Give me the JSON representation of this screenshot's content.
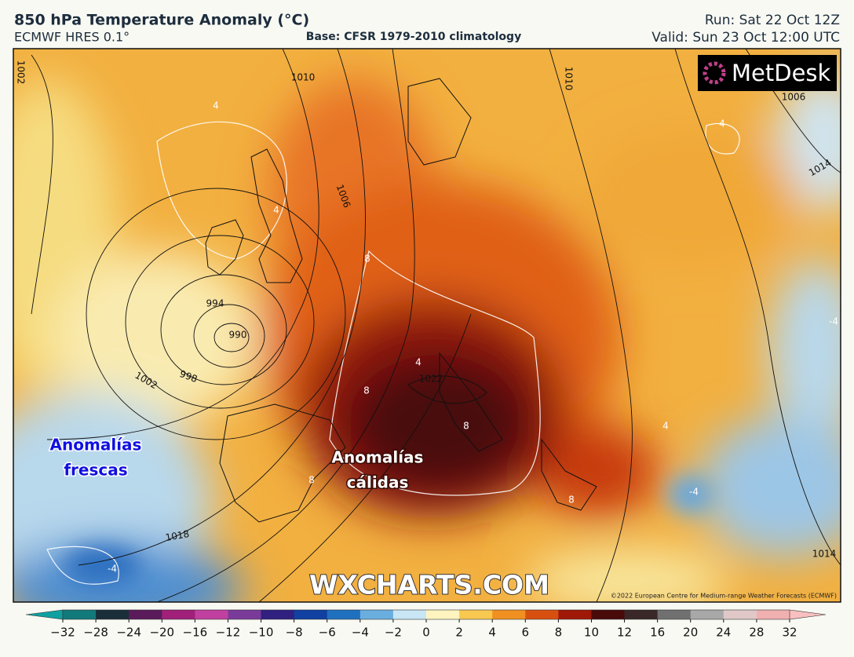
{
  "header": {
    "title": "850 hPa Temperature Anomaly (°C)",
    "model": "ECMWF HRES 0.1°",
    "base": "Base: CFSR 1979-2010 climatology",
    "run": "Run: Sat 22 Oct 12Z",
    "valid": "Valid: Sun 23 Oct 12:00 UTC"
  },
  "map": {
    "logo": "MetDesk",
    "annotations": [
      {
        "lines": [
          "Anomalías",
          "frescas"
        ]
      },
      {
        "lines": [
          "Anomalías",
          "cálidas"
        ]
      }
    ],
    "isobar_labels": [
      "1002",
      "1010",
      "1006",
      "1006",
      "1014",
      "994",
      "990",
      "998",
      "1002",
      "1022",
      "1018",
      "1014",
      "1010"
    ],
    "anomaly_labels": [
      "4",
      "4",
      "4",
      "8",
      "8",
      "4",
      "8",
      "8",
      "8",
      "4",
      "-4",
      "-4",
      "-4"
    ],
    "watermark": "WXCHARTS.COM",
    "credit": "©2022 European Centre for Medium-range Weather Forecasts (ECMWF)"
  },
  "colorbar": {
    "ticks": [
      {
        "value": -32,
        "label": "−32"
      },
      {
        "value": -28,
        "label": "−28"
      },
      {
        "value": -24,
        "label": "−24"
      },
      {
        "value": -20,
        "label": "−20"
      },
      {
        "value": -16,
        "label": "−16"
      },
      {
        "value": -12,
        "label": "−12"
      },
      {
        "value": -10,
        "label": "−10"
      },
      {
        "value": -8,
        "label": "−8"
      },
      {
        "value": -6,
        "label": "−6"
      },
      {
        "value": -4,
        "label": "−4"
      },
      {
        "value": -2,
        "label": "−2"
      },
      0,
      2,
      4,
      6,
      8,
      10,
      12,
      16,
      20,
      24,
      28,
      32
    ],
    "colors": [
      "#127a7a",
      "#1a2e3a",
      "#5a1b5a",
      "#a0207a",
      "#c040a0",
      "#7a3a9a",
      "#302080",
      "#1040a0",
      "#2070c0",
      "#6aaee0",
      "#c8e6f5",
      "#fff4c0",
      "#f8c850",
      "#f09020",
      "#d85010",
      "#a01808",
      "#4a0a0a",
      "#3a2828",
      "#707070",
      "#a8a8a8",
      "#e0c8c8",
      "#f0b0b0"
    ],
    "under_color": "#10a0a0",
    "over_color": "#f8c0c0"
  }
}
